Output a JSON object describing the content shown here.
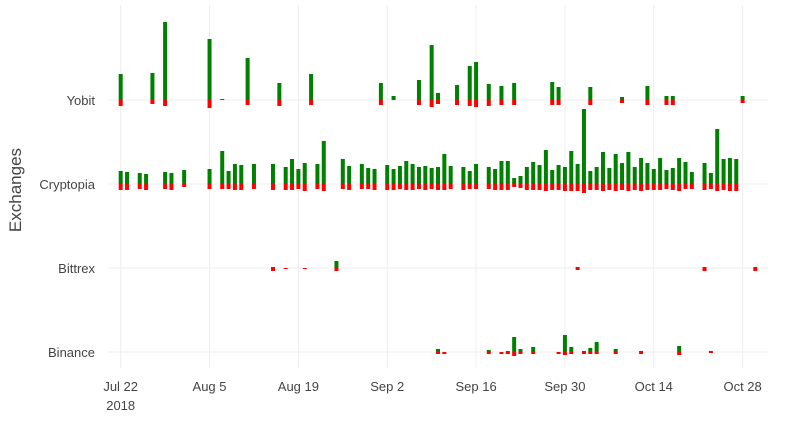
{
  "chart_data": {
    "type": "bar",
    "title": "",
    "xlabel": "",
    "ylabel": "Exchanges",
    "grid": true,
    "legend": "none",
    "colors": {
      "up": "#008000",
      "down": "#ff0000",
      "grid": "#eeeeee",
      "text": "#444444"
    },
    "x_range": [
      "2018-07-20",
      "2018-11-01"
    ],
    "x_ticks": [
      {
        "date": "2018-07-22",
        "label": "Jul 22",
        "sublabel": "2018"
      },
      {
        "date": "2018-08-05",
        "label": "Aug 5",
        "sublabel": ""
      },
      {
        "date": "2018-08-19",
        "label": "Aug 19",
        "sublabel": ""
      },
      {
        "date": "2018-09-02",
        "label": "Sep 2",
        "sublabel": ""
      },
      {
        "date": "2018-09-16",
        "label": "Sep 16",
        "sublabel": ""
      },
      {
        "date": "2018-09-30",
        "label": "Sep 30",
        "sublabel": ""
      },
      {
        "date": "2018-10-14",
        "label": "Oct 14",
        "sublabel": ""
      },
      {
        "date": "2018-10-28",
        "label": "Oct 28",
        "sublabel": ""
      }
    ],
    "categories": [
      "Binance",
      "Bittrex",
      "Cryptopia",
      "Yobit"
    ],
    "series": [
      {
        "exchange": "Yobit",
        "points": [
          [
            "2018-07-22",
            26,
            6
          ],
          [
            "2018-07-27",
            27,
            4
          ],
          [
            "2018-07-29",
            78,
            6
          ],
          [
            "2018-08-05",
            61,
            8
          ],
          [
            "2018-08-07",
            1,
            0
          ],
          [
            "2018-08-11",
            42,
            5
          ],
          [
            "2018-08-16",
            17,
            6
          ],
          [
            "2018-08-21",
            26,
            5
          ],
          [
            "2018-09-01",
            17,
            5
          ],
          [
            "2018-09-03",
            4,
            0
          ],
          [
            "2018-09-07",
            20,
            5
          ],
          [
            "2018-09-09",
            55,
            7
          ],
          [
            "2018-09-10",
            7,
            4
          ],
          [
            "2018-09-13",
            15,
            5
          ],
          [
            "2018-09-15",
            34,
            6
          ],
          [
            "2018-09-16",
            38,
            7
          ],
          [
            "2018-09-18",
            16,
            6
          ],
          [
            "2018-09-20",
            14,
            5
          ],
          [
            "2018-09-22",
            17,
            5
          ],
          [
            "2018-09-28",
            18,
            5
          ],
          [
            "2018-09-29",
            13,
            5
          ],
          [
            "2018-10-04",
            13,
            5
          ],
          [
            "2018-10-09",
            3,
            3
          ],
          [
            "2018-10-13",
            14,
            5
          ],
          [
            "2018-10-16",
            4,
            5
          ],
          [
            "2018-10-17",
            4,
            5
          ],
          [
            "2018-10-28",
            4,
            3
          ]
        ]
      },
      {
        "exchange": "Cryptopia",
        "points": [
          [
            "2018-07-22",
            13,
            6
          ],
          [
            "2018-07-23",
            12,
            6
          ],
          [
            "2018-07-25",
            11,
            5
          ],
          [
            "2018-07-26",
            10,
            6
          ],
          [
            "2018-07-29",
            12,
            5
          ],
          [
            "2018-07-30",
            11,
            6
          ],
          [
            "2018-08-01",
            14,
            3
          ],
          [
            "2018-08-05",
            15,
            5
          ],
          [
            "2018-08-07",
            33,
            5
          ],
          [
            "2018-08-08",
            13,
            5
          ],
          [
            "2018-08-09",
            20,
            6
          ],
          [
            "2018-08-10",
            19,
            6
          ],
          [
            "2018-08-12",
            20,
            5
          ],
          [
            "2018-08-15",
            20,
            6
          ],
          [
            "2018-08-17",
            17,
            6
          ],
          [
            "2018-08-18",
            25,
            6
          ],
          [
            "2018-08-19",
            15,
            5
          ],
          [
            "2018-08-20",
            21,
            7
          ],
          [
            "2018-08-22",
            20,
            5
          ],
          [
            "2018-08-23",
            43,
            7
          ],
          [
            "2018-08-26",
            25,
            5
          ],
          [
            "2018-08-27",
            18,
            6
          ],
          [
            "2018-08-29",
            20,
            5
          ],
          [
            "2018-08-30",
            16,
            5
          ],
          [
            "2018-08-31",
            15,
            6
          ],
          [
            "2018-09-02",
            19,
            6
          ],
          [
            "2018-09-03",
            15,
            6
          ],
          [
            "2018-09-04",
            18,
            5
          ],
          [
            "2018-09-05",
            23,
            6
          ],
          [
            "2018-09-06",
            20,
            6
          ],
          [
            "2018-09-07",
            17,
            5
          ],
          [
            "2018-09-08",
            18,
            6
          ],
          [
            "2018-09-09",
            16,
            5
          ],
          [
            "2018-09-10",
            17,
            6
          ],
          [
            "2018-09-11",
            30,
            6
          ],
          [
            "2018-09-12",
            18,
            5
          ],
          [
            "2018-09-14",
            17,
            6
          ],
          [
            "2018-09-15",
            13,
            5
          ],
          [
            "2018-09-16",
            20,
            5
          ],
          [
            "2018-09-18",
            17,
            5
          ],
          [
            "2018-09-19",
            15,
            6
          ],
          [
            "2018-09-20",
            23,
            6
          ],
          [
            "2018-09-21",
            23,
            6
          ],
          [
            "2018-09-22",
            6,
            3
          ],
          [
            "2018-09-23",
            8,
            4
          ],
          [
            "2018-09-24",
            17,
            6
          ],
          [
            "2018-09-25",
            22,
            6
          ],
          [
            "2018-09-26",
            19,
            6
          ],
          [
            "2018-09-27",
            34,
            7
          ],
          [
            "2018-09-28",
            14,
            6
          ],
          [
            "2018-09-29",
            19,
            6
          ],
          [
            "2018-09-30",
            17,
            7
          ],
          [
            "2018-10-01",
            33,
            7
          ],
          [
            "2018-10-02",
            20,
            7
          ],
          [
            "2018-10-03",
            75,
            9
          ],
          [
            "2018-10-04",
            13,
            6
          ],
          [
            "2018-10-05",
            17,
            6
          ],
          [
            "2018-10-06",
            32,
            7
          ],
          [
            "2018-10-07",
            16,
            6
          ],
          [
            "2018-10-08",
            30,
            7
          ],
          [
            "2018-10-09",
            21,
            6
          ],
          [
            "2018-10-10",
            32,
            7
          ],
          [
            "2018-10-11",
            17,
            6
          ],
          [
            "2018-10-12",
            26,
            7
          ],
          [
            "2018-10-13",
            21,
            6
          ],
          [
            "2018-10-14",
            15,
            6
          ],
          [
            "2018-10-15",
            26,
            6
          ],
          [
            "2018-10-16",
            14,
            5
          ],
          [
            "2018-10-17",
            16,
            6
          ],
          [
            "2018-10-18",
            26,
            7
          ],
          [
            "2018-10-19",
            22,
            5
          ],
          [
            "2018-10-20",
            12,
            5
          ],
          [
            "2018-10-22",
            21,
            6
          ],
          [
            "2018-10-23",
            11,
            5
          ],
          [
            "2018-10-24",
            55,
            7
          ],
          [
            "2018-10-25",
            25,
            6
          ],
          [
            "2018-10-26",
            26,
            7
          ],
          [
            "2018-10-27",
            25,
            7
          ]
        ]
      },
      {
        "exchange": "Bittrex",
        "points": [
          [
            "2018-08-15",
            1,
            3
          ],
          [
            "2018-08-17",
            0,
            1
          ],
          [
            "2018-08-20",
            0,
            1
          ],
          [
            "2018-08-25",
            7,
            3
          ],
          [
            "2018-10-02",
            1,
            2
          ],
          [
            "2018-10-22",
            1,
            3
          ],
          [
            "2018-10-30",
            1,
            3
          ]
        ]
      },
      {
        "exchange": "Binance",
        "points": [
          [
            "2018-09-10",
            3,
            2
          ],
          [
            "2018-09-11",
            0,
            2
          ],
          [
            "2018-09-18",
            2,
            2
          ],
          [
            "2018-09-20",
            0,
            2
          ],
          [
            "2018-09-21",
            1,
            2
          ],
          [
            "2018-09-22",
            15,
            4
          ],
          [
            "2018-09-23",
            3,
            2
          ],
          [
            "2018-09-25",
            5,
            2
          ],
          [
            "2018-09-29",
            0,
            2
          ],
          [
            "2018-09-30",
            17,
            3
          ],
          [
            "2018-10-01",
            5,
            2
          ],
          [
            "2018-10-03",
            1,
            2
          ],
          [
            "2018-10-04",
            4,
            2
          ],
          [
            "2018-10-05",
            10,
            2
          ],
          [
            "2018-10-08",
            3,
            2
          ],
          [
            "2018-10-12",
            1,
            2
          ],
          [
            "2018-10-18",
            6,
            3
          ],
          [
            "2018-10-23",
            1,
            1
          ]
        ]
      }
    ]
  }
}
